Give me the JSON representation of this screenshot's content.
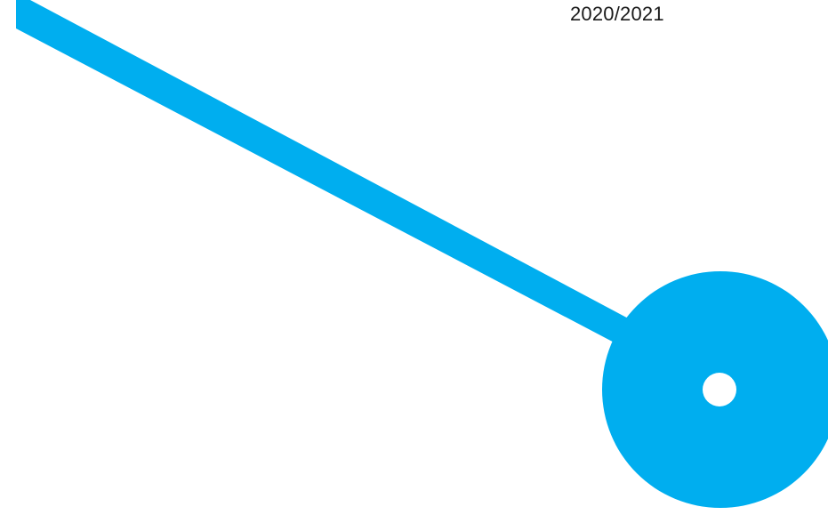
{
  "header": {
    "year_range": "2020/2021"
  },
  "graphic": {
    "accent_color": "#00AEEF",
    "hole_color": "#FFFFFF",
    "icon": "pin-marker"
  }
}
